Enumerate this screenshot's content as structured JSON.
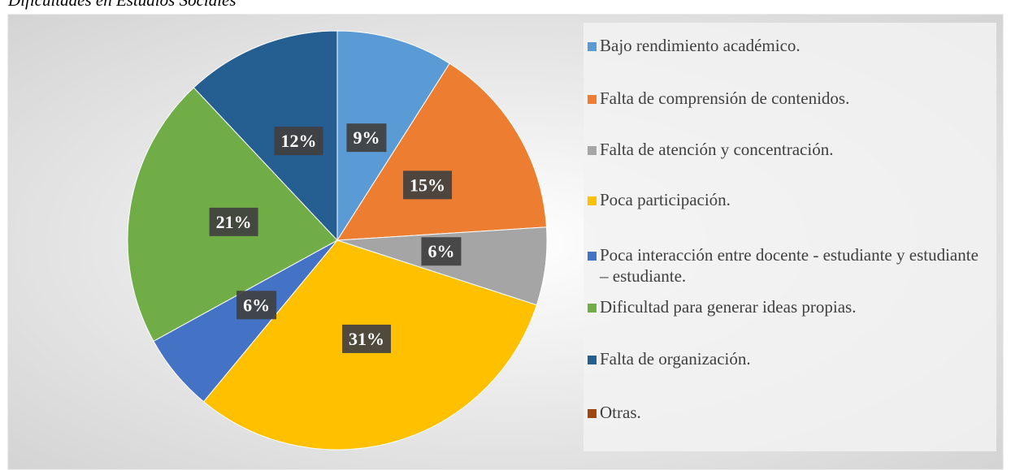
{
  "chart_data": {
    "type": "pie",
    "title": "Dificultades en Estudios Sociales",
    "categories": [
      "Bajo rendimiento académico.",
      "Falta de comprensión de contenidos.",
      "Falta de atención y concentración.",
      "Poca participación.",
      "Poca interacción entre docente - estudiante y estudiante – estudiante.",
      "Dificultad para generar ideas propias.",
      "Falta de organización.",
      "Otras."
    ],
    "values": [
      9,
      15,
      6,
      31,
      6,
      21,
      12,
      0
    ],
    "value_labels": [
      "9%",
      "15%",
      "6%",
      "31%",
      "6%",
      "21%",
      "12%",
      null
    ],
    "colors": [
      "#5b9bd5",
      "#ed7d31",
      "#a5a5a5",
      "#ffc000",
      "#4472c4",
      "#70ad47",
      "#255e91",
      "#9e480e"
    ],
    "legend": "right"
  }
}
